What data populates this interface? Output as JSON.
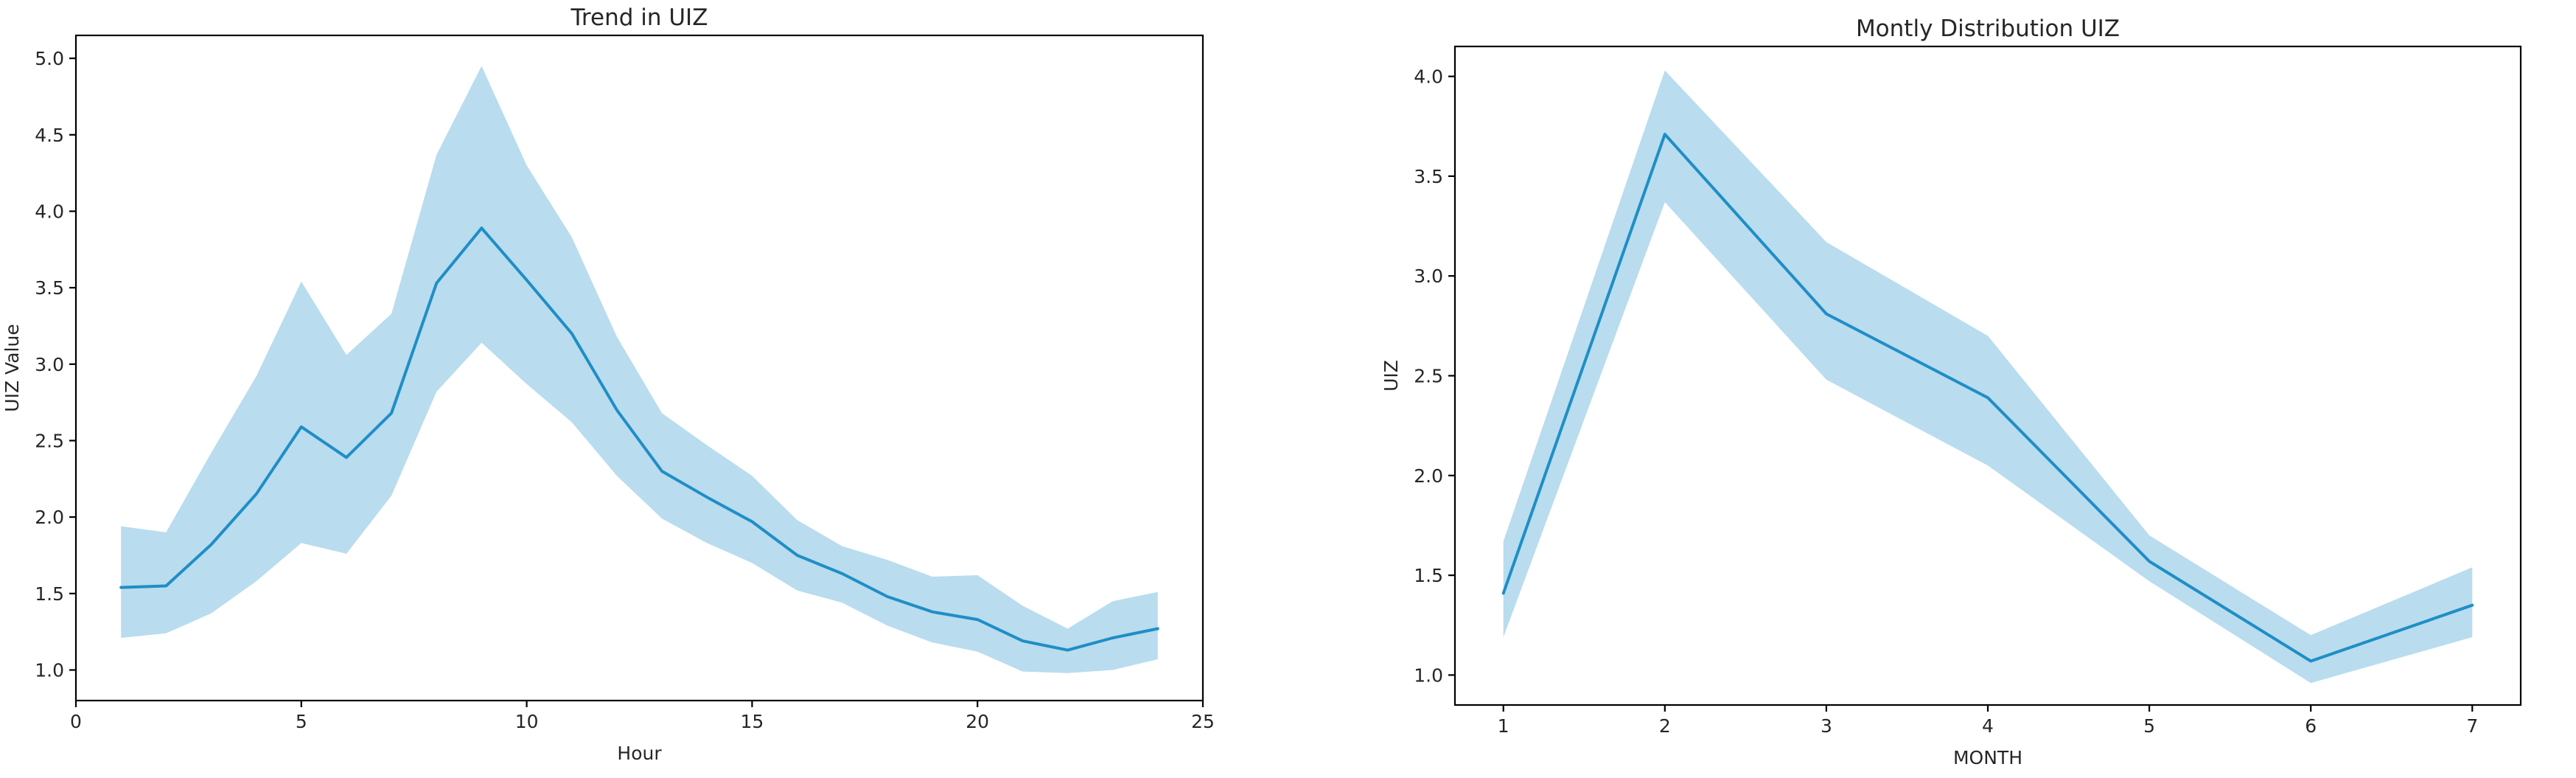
{
  "chart_data": [
    {
      "type": "line",
      "title": "Trend in UIZ",
      "xlabel": "Hour",
      "ylabel": "UIZ Value",
      "xlim": [
        0,
        25
      ],
      "ylim": [
        0.8,
        5.15
      ],
      "xticks": [
        0,
        5,
        10,
        15,
        20,
        25
      ],
      "xtick_labels": [
        "0",
        "5",
        "10",
        "15",
        "20",
        "25"
      ],
      "yticks": [
        1.0,
        1.5,
        2.0,
        2.5,
        3.0,
        3.5,
        4.0,
        4.5,
        5.0
      ],
      "ytick_labels": [
        "1.0",
        "1.5",
        "2.0",
        "2.5",
        "3.0",
        "3.5",
        "4.0",
        "4.5",
        "5.0"
      ],
      "grid": false,
      "line_color": "#1f8ec6",
      "band_color": "#b9dcef",
      "series": [
        {
          "x": [
            1,
            2,
            3,
            4,
            5,
            6,
            7,
            8,
            9,
            10,
            11,
            12,
            13,
            14,
            15,
            16,
            17,
            18,
            19,
            20,
            21,
            22,
            23,
            24
          ],
          "y": [
            1.54,
            1.55,
            1.82,
            2.15,
            2.59,
            2.39,
            2.68,
            3.53,
            3.89,
            3.55,
            3.2,
            2.7,
            2.3,
            2.13,
            1.97,
            1.75,
            1.63,
            1.48,
            1.38,
            1.33,
            1.19,
            1.13,
            1.21,
            1.27
          ],
          "ci_low": [
            1.21,
            1.24,
            1.37,
            1.58,
            1.83,
            1.76,
            2.14,
            2.82,
            3.14,
            2.87,
            2.62,
            2.27,
            1.99,
            1.83,
            1.7,
            1.52,
            1.44,
            1.29,
            1.18,
            1.12,
            0.99,
            0.98,
            1.0,
            1.07
          ],
          "ci_high": [
            1.94,
            1.9,
            2.42,
            2.92,
            3.54,
            3.06,
            3.33,
            4.37,
            4.95,
            4.3,
            3.83,
            3.18,
            2.68,
            2.47,
            2.27,
            1.98,
            1.81,
            1.72,
            1.61,
            1.62,
            1.42,
            1.27,
            1.45,
            1.51
          ]
        }
      ]
    },
    {
      "type": "line",
      "title": "Montly Distribution UIZ",
      "xlabel": "MONTH",
      "ylabel": "UIZ",
      "xlim": [
        0.7,
        7.3
      ],
      "ylim": [
        0.85,
        4.15
      ],
      "xticks": [
        1,
        2,
        3,
        4,
        5,
        6,
        7
      ],
      "xtick_labels": [
        "1",
        "2",
        "3",
        "4",
        "5",
        "6",
        "7"
      ],
      "yticks": [
        1.0,
        1.5,
        2.0,
        2.5,
        3.0,
        3.5,
        4.0
      ],
      "ytick_labels": [
        "1.0",
        "1.5",
        "2.0",
        "2.5",
        "3.0",
        "3.5",
        "4.0"
      ],
      "grid": false,
      "line_color": "#1f8ec6",
      "band_color": "#b9dcef",
      "series": [
        {
          "x": [
            1,
            2,
            3,
            4,
            5,
            6,
            7
          ],
          "y": [
            1.41,
            3.71,
            2.81,
            2.39,
            1.57,
            1.07,
            1.35
          ],
          "ci_low": [
            1.19,
            3.37,
            2.48,
            2.05,
            1.47,
            0.96,
            1.19
          ],
          "ci_high": [
            1.67,
            4.03,
            3.17,
            2.7,
            1.7,
            1.2,
            1.54
          ]
        }
      ]
    }
  ]
}
